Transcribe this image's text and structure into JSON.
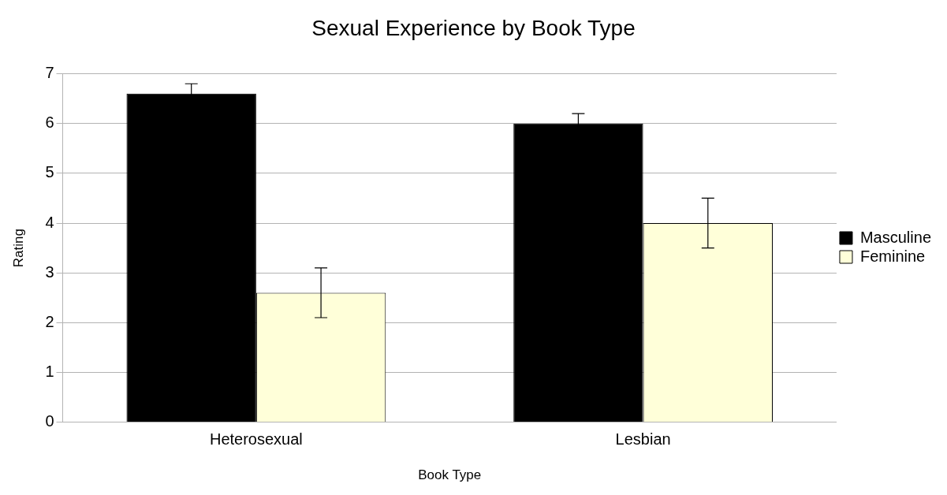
{
  "chart_data": {
    "type": "bar",
    "title": "Sexual Experience by Book Type",
    "xlabel": "Book Type",
    "ylabel": "Rating",
    "categories": [
      "Heterosexual",
      "Lesbian"
    ],
    "series": [
      {
        "name": "Masculine",
        "color": "#000000",
        "values": [
          6.6,
          6.0
        ],
        "errors": [
          0.2,
          0.2
        ]
      },
      {
        "name": "Feminine",
        "color": "#ffffd9",
        "values": [
          2.6,
          4.0
        ],
        "errors": [
          0.5,
          0.5
        ]
      }
    ],
    "ylim": [
      0,
      7
    ],
    "yticks": [
      0,
      1,
      2,
      3,
      4,
      5,
      6,
      7
    ],
    "grid": "y",
    "legend": "right"
  }
}
